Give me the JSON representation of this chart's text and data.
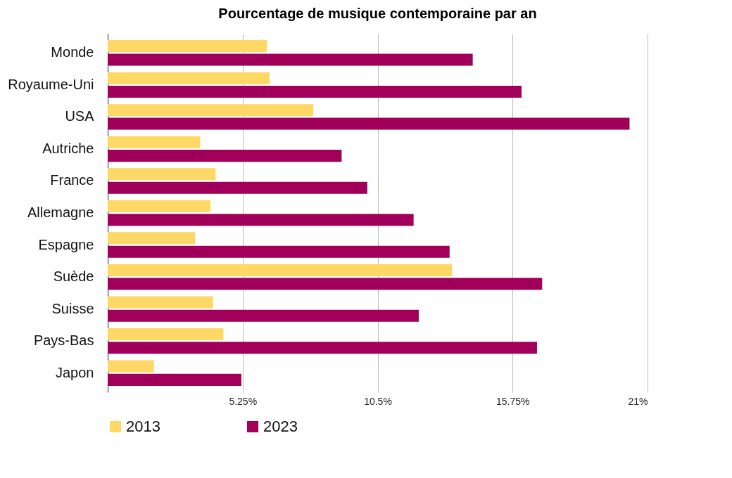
{
  "chart_data": {
    "type": "bar",
    "orientation": "horizontal",
    "title": "Pourcentage de musique contemporaine par an",
    "categories": [
      "Monde",
      "Royaume-Uni",
      "USA",
      "Autriche",
      "France",
      "Allemagne",
      "Espagne",
      "Suède",
      "Suisse",
      "Pays-Bas",
      "Japon"
    ],
    "series": [
      {
        "name": "2013",
        "color": "#fdd864",
        "values": [
          6.2,
          6.3,
          8.0,
          3.6,
          4.2,
          4.0,
          3.4,
          13.4,
          4.1,
          4.5,
          1.8
        ]
      },
      {
        "name": "2023",
        "color": "#a0005a",
        "values": [
          14.2,
          16.1,
          20.3,
          9.1,
          10.1,
          11.9,
          13.3,
          16.9,
          12.1,
          16.7,
          5.2
        ]
      }
    ],
    "xlim": [
      0,
      21
    ],
    "xticks": [
      {
        "value": 0,
        "label": null
      },
      {
        "value": 5.25,
        "label": "5.25%"
      },
      {
        "value": 10.5,
        "label": "10.5%"
      },
      {
        "value": 15.75,
        "label": "15.75%"
      },
      {
        "value": 21,
        "label": "21%"
      }
    ],
    "grid": "x",
    "legend": "bottom"
  }
}
